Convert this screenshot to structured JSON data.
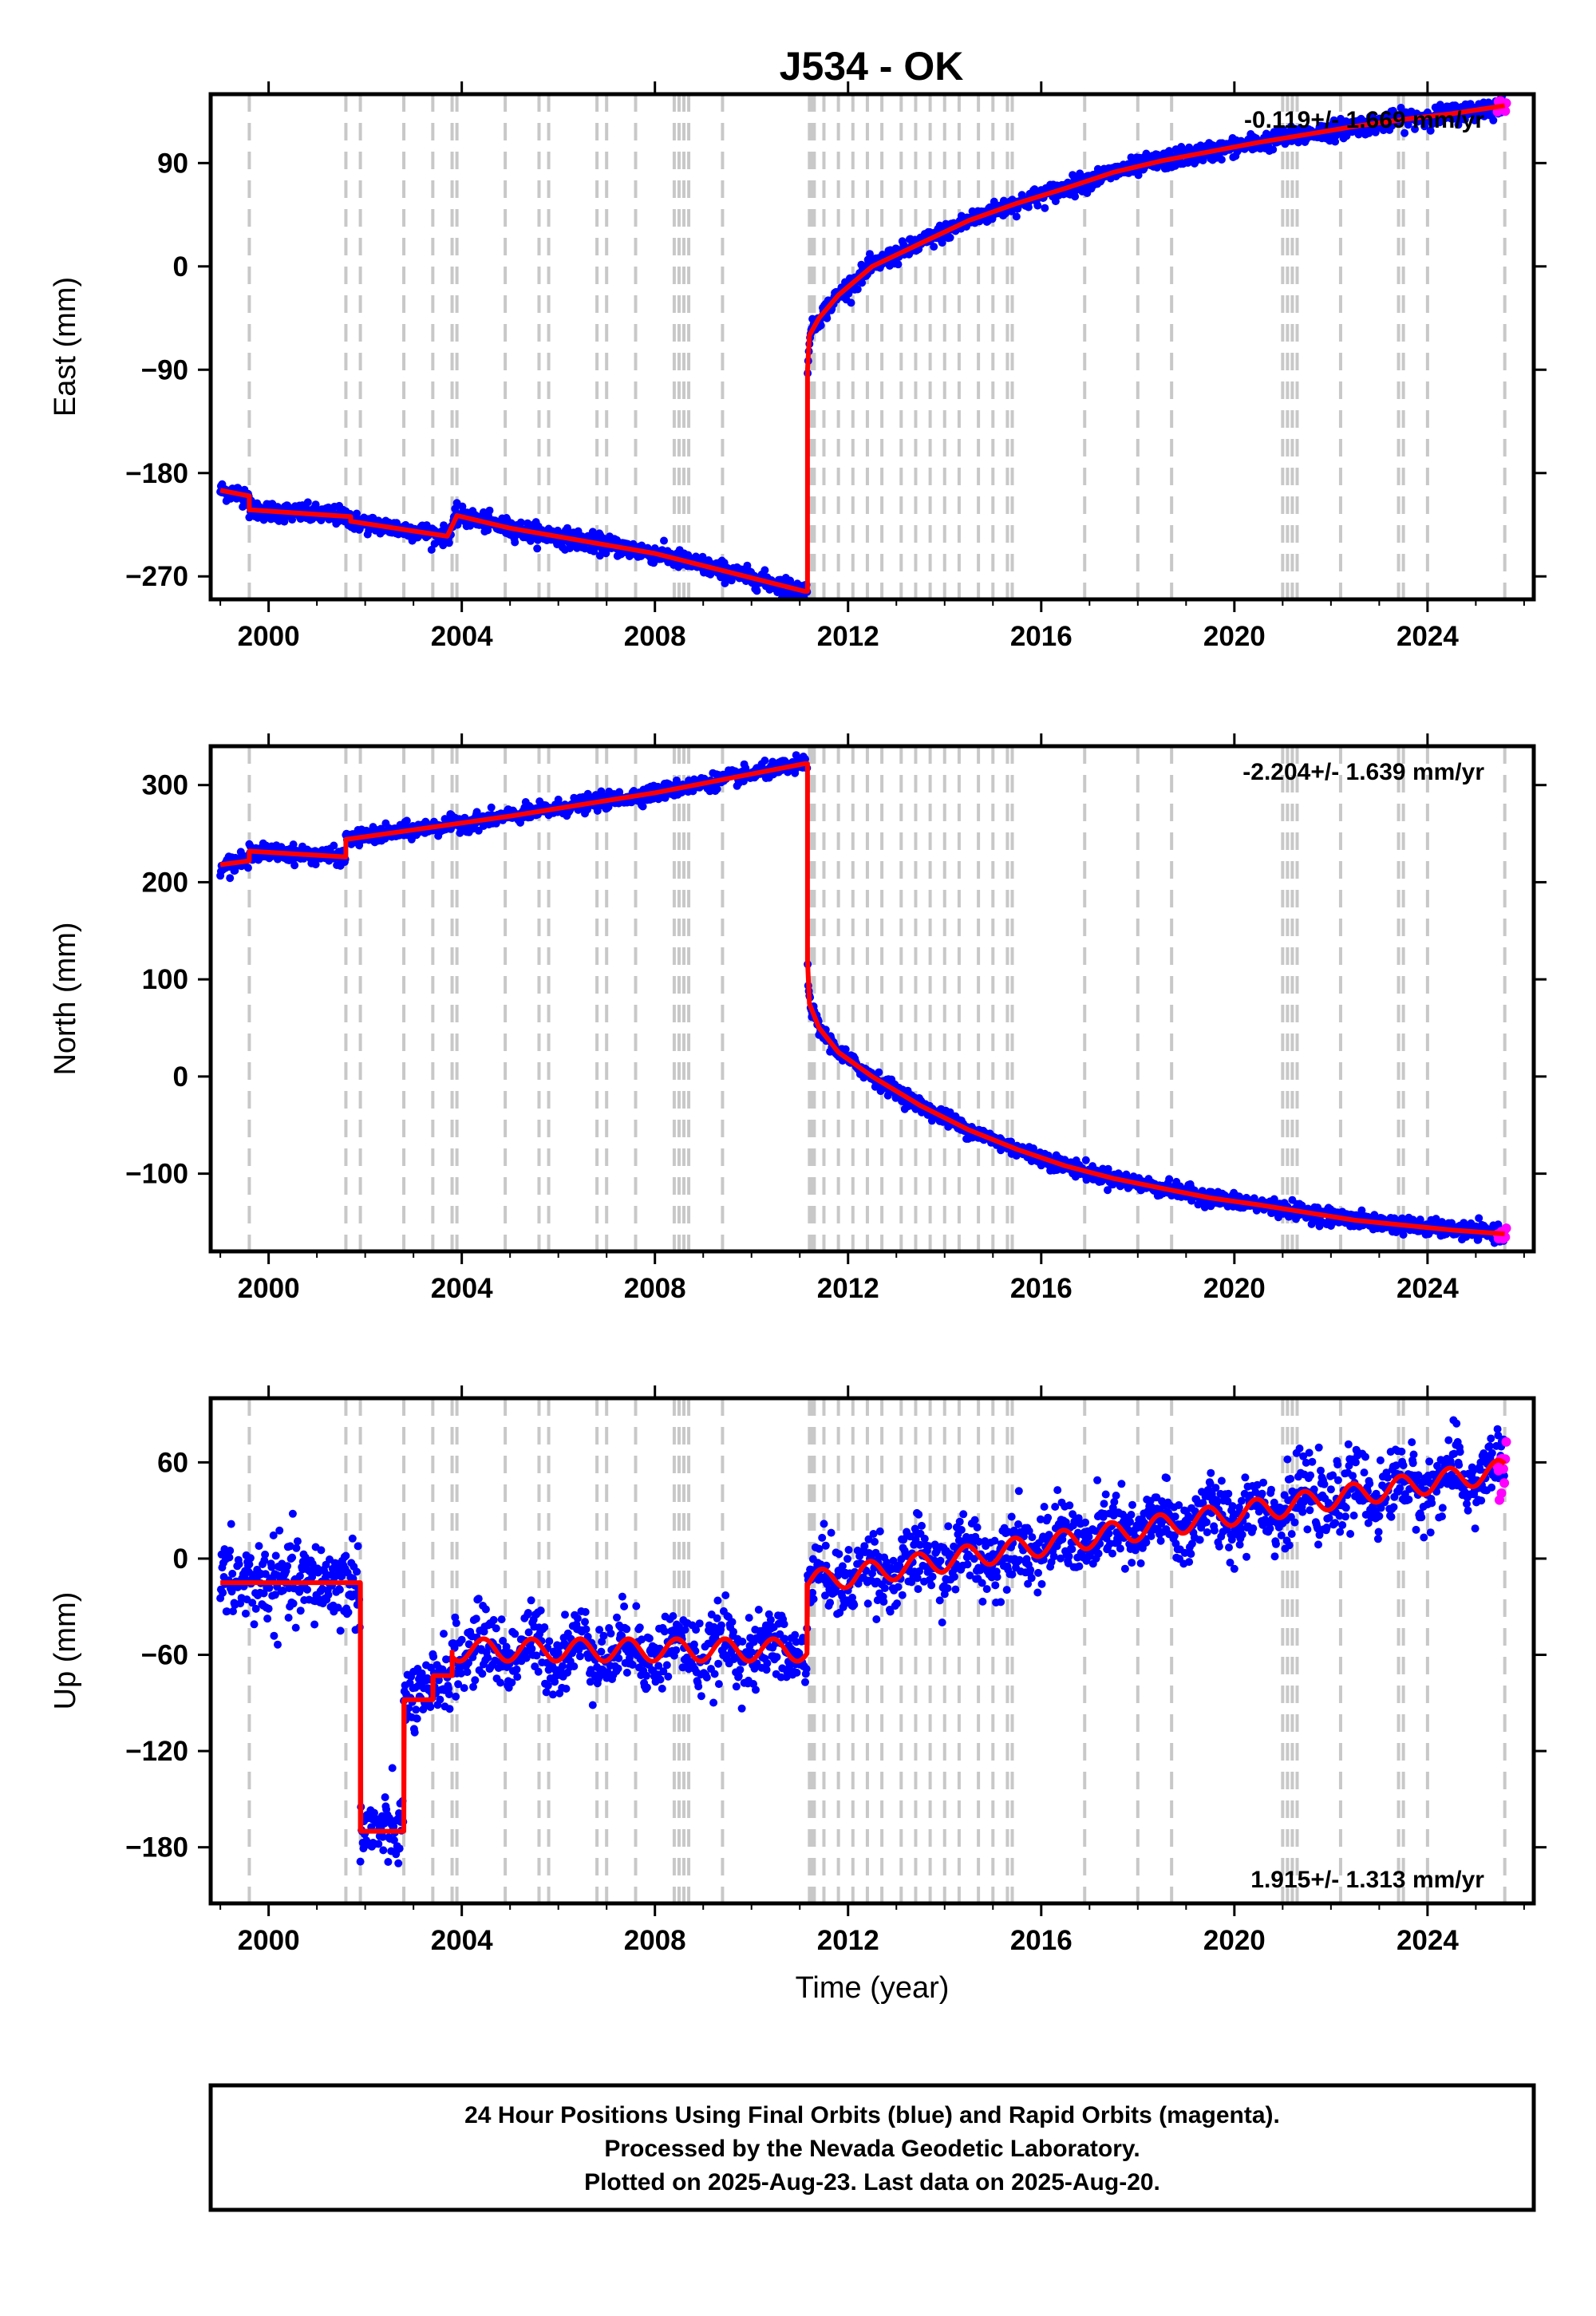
{
  "title": "J534 - OK",
  "footer": {
    "line1": "24 Hour Positions Using Final Orbits (blue) and Rapid Orbits (magenta).",
    "line2": "Processed by the Nevada Geodetic Laboratory.",
    "line3": "Plotted on 2025-Aug-23. Last data on 2025-Aug-20."
  },
  "colors": {
    "final_orbits": "#0000ff",
    "rapid_orbits": "#ff00ff",
    "model": "#ff0000",
    "event_lines": "#c8c8c8"
  },
  "chart_data": [
    {
      "type": "scatter",
      "name": "east",
      "ylabel": "East (mm)",
      "xlabel": "",
      "rate_text": "-0.119+/- 1.669 mm/yr",
      "rate_position": "top-right",
      "xlim": [
        1998.8,
        2026.2
      ],
      "ylim": [
        -290,
        150
      ],
      "xticks": [
        2000,
        2004,
        2008,
        2012,
        2016,
        2020,
        2024
      ],
      "yticks": [
        -270,
        -180,
        -90,
        0,
        90
      ],
      "model": {
        "x": [
          1999.0,
          1999.6,
          1999.6,
          2001.7,
          2001.7,
          2003.7,
          2003.9,
          2005.0,
          2008.0,
          2011.1,
          2011.16,
          2011.16,
          2011.2,
          2011.4,
          2011.8,
          2012.5,
          2013.5,
          2014.5,
          2015.5,
          2016.5,
          2017.5,
          2018.5,
          2019.5,
          2020.5,
          2021.5,
          2022.5,
          2023.5,
          2024.5,
          2025.6
        ],
        "y": [
          -195,
          -200,
          -212,
          -218,
          -222,
          -235,
          -217,
          -228,
          -250,
          -283,
          -283,
          -90,
          -60,
          -45,
          -25,
          0,
          20,
          40,
          55,
          68,
          82,
          92,
          100,
          108,
          115,
          122,
          128,
          133,
          140
        ]
      },
      "event_lines": [
        1999.6,
        2001.6,
        2001.9,
        2002.8,
        2003.4,
        2003.8,
        2003.9,
        2004.9,
        2005.6,
        2005.8,
        2006.8,
        2007.0,
        2007.6,
        2008.4,
        2008.5,
        2008.6,
        2008.7,
        2009.4,
        2011.2,
        2011.25,
        2011.3,
        2011.5,
        2011.8,
        2012.1,
        2012.4,
        2012.7,
        2013.1,
        2013.4,
        2013.7,
        2014.0,
        2014.3,
        2014.7,
        2015.0,
        2015.3,
        2015.4,
        2016.9,
        2018.0,
        2018.7,
        2021.0,
        2021.1,
        2021.2,
        2021.3,
        2022.2,
        2023.4,
        2023.5,
        2024.0,
        2025.6
      ]
    },
    {
      "type": "scatter",
      "name": "north",
      "ylabel": "North (mm)",
      "xlabel": "",
      "rate_text": "-2.204+/- 1.639 mm/yr",
      "rate_position": "top-right",
      "xlim": [
        1998.8,
        2026.2
      ],
      "ylim": [
        -180,
        340
      ],
      "xticks": [
        2000,
        2004,
        2008,
        2012,
        2016,
        2020,
        2024
      ],
      "yticks": [
        -100,
        0,
        100,
        200,
        300
      ],
      "model": {
        "x": [
          1999.0,
          1999.6,
          1999.6,
          2001.6,
          2001.6,
          2005.0,
          2008.0,
          2011.1,
          2011.16,
          2011.16,
          2011.2,
          2011.4,
          2011.8,
          2012.5,
          2013.5,
          2014.5,
          2015.5,
          2016.5,
          2017.5,
          2018.5,
          2019.5,
          2020.5,
          2021.5,
          2022.5,
          2023.5,
          2024.5,
          2025.6
        ],
        "y": [
          218,
          222,
          232,
          226,
          244,
          268,
          292,
          322,
          322,
          120,
          75,
          50,
          25,
          0,
          -30,
          -55,
          -75,
          -92,
          -105,
          -115,
          -125,
          -132,
          -140,
          -148,
          -153,
          -158,
          -162
        ]
      },
      "event_lines": [
        1999.6,
        2001.6,
        2001.9,
        2002.8,
        2003.4,
        2003.8,
        2003.9,
        2004.9,
        2005.6,
        2005.8,
        2006.8,
        2007.0,
        2007.6,
        2008.4,
        2008.5,
        2008.6,
        2008.7,
        2009.4,
        2011.2,
        2011.25,
        2011.3,
        2011.5,
        2011.8,
        2012.1,
        2012.4,
        2012.7,
        2013.1,
        2013.4,
        2013.7,
        2014.0,
        2014.3,
        2014.7,
        2015.0,
        2015.3,
        2015.4,
        2016.9,
        2018.0,
        2018.7,
        2021.0,
        2021.1,
        2021.2,
        2021.3,
        2022.2,
        2023.4,
        2023.5,
        2024.0,
        2025.6
      ]
    },
    {
      "type": "scatter",
      "name": "up",
      "ylabel": "Up (mm)",
      "xlabel": "Time (year)",
      "rate_text": "1.915+/- 1.313 mm/yr",
      "rate_position": "bottom-right",
      "xlim": [
        1998.8,
        2026.2
      ],
      "ylim": [
        -215,
        100
      ],
      "xticks": [
        2000,
        2004,
        2008,
        2012,
        2016,
        2020,
        2024
      ],
      "yticks": [
        -180,
        -120,
        -60,
        0,
        60
      ],
      "model": {
        "x": [
          1999.0,
          2001.9,
          2001.9,
          2002.8,
          2002.8,
          2003.4,
          2003.4,
          2003.8,
          2003.8,
          2011.15,
          2011.15,
          2025.6
        ],
        "y": [
          -15,
          -15,
          -170,
          -170,
          -88,
          -88,
          -73,
          -73,
          -57,
          -57,
          -15,
          55
        ]
      },
      "event_lines": [
        1999.6,
        2001.6,
        2001.9,
        2002.8,
        2003.4,
        2003.8,
        2003.9,
        2004.9,
        2005.6,
        2005.8,
        2006.8,
        2007.0,
        2007.6,
        2008.4,
        2008.5,
        2008.6,
        2008.7,
        2009.4,
        2011.2,
        2011.25,
        2011.3,
        2011.5,
        2011.8,
        2012.1,
        2012.4,
        2012.7,
        2013.1,
        2013.4,
        2013.7,
        2014.0,
        2014.3,
        2014.7,
        2015.0,
        2015.3,
        2015.4,
        2016.9,
        2018.0,
        2018.7,
        2021.0,
        2021.1,
        2021.2,
        2021.3,
        2022.2,
        2023.4,
        2023.5,
        2024.0,
        2025.6
      ]
    }
  ]
}
